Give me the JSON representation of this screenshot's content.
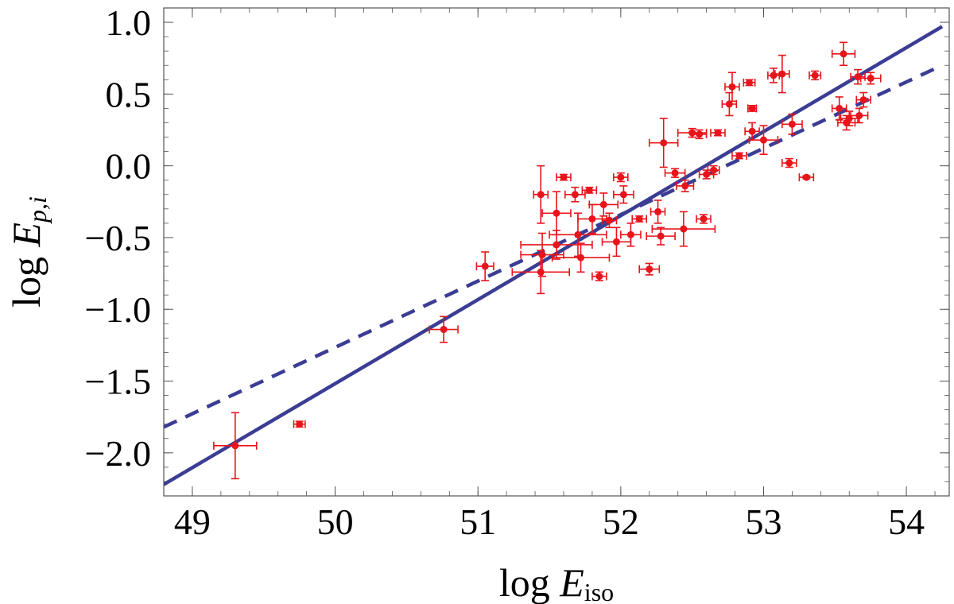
{
  "chart_data": {
    "type": "scatter",
    "title": "",
    "xlabel": {
      "base": "log ",
      "var": "E",
      "sub": "iso"
    },
    "ylabel": {
      "base": "log ",
      "var": "E",
      "sub": "p,i"
    },
    "xlim": [
      48.8,
      54.3
    ],
    "ylim": [
      -2.3,
      1.1
    ],
    "xticks": [
      49,
      50,
      51,
      52,
      53,
      54
    ],
    "xtick_labels": [
      "49",
      "50",
      "51",
      "52",
      "53",
      "54"
    ],
    "yticks": [
      1.0,
      0.5,
      0.0,
      -0.5,
      -1.0,
      -1.5,
      -2.0
    ],
    "ytick_labels": [
      "1.0",
      "0.5",
      "0.0",
      "−0.5",
      "−1.0",
      "−1.5",
      "−2.0"
    ],
    "grid": false,
    "colors": {
      "points": "#e8141b",
      "fit": "#3b3d94",
      "axes": "#555555"
    },
    "lines": [
      {
        "style": "solid",
        "x": [
          48.8,
          54.25
        ],
        "y": [
          -2.22,
          0.97
        ]
      },
      {
        "style": "dashed",
        "x": [
          48.8,
          54.25
        ],
        "y": [
          -1.82,
          0.7
        ]
      }
    ],
    "points": [
      {
        "x": 49.3,
        "y": -1.95,
        "xerr": 0.15,
        "yerr": 0.23
      },
      {
        "x": 49.75,
        "y": -1.8,
        "xerr": 0.04,
        "yerr": 0.02
      },
      {
        "x": 50.76,
        "y": -1.14,
        "xerr": 0.1,
        "yerr": 0.09
      },
      {
        "x": 51.05,
        "y": -0.7,
        "xerr": 0.06,
        "yerr": 0.1
      },
      {
        "x": 51.44,
        "y": -0.2,
        "xerr": 0.05,
        "yerr": 0.2
      },
      {
        "x": 51.45,
        "y": -0.62,
        "xerr": 0.15,
        "yerr": 0.15
      },
      {
        "x": 51.44,
        "y": -0.74,
        "xerr": 0.2,
        "yerr": 0.15
      },
      {
        "x": 51.55,
        "y": -0.33,
        "xerr": 0.1,
        "yerr": 0.15
      },
      {
        "x": 51.6,
        "y": -0.08,
        "xerr": 0.05,
        "yerr": 0.02
      },
      {
        "x": 51.68,
        "y": -0.2,
        "xerr": 0.07,
        "yerr": 0.05
      },
      {
        "x": 51.55,
        "y": -0.55,
        "xerr": 0.25,
        "yerr": 0.1
      },
      {
        "x": 51.7,
        "y": -0.48,
        "xerr": 0.2,
        "yerr": 0.15
      },
      {
        "x": 51.72,
        "y": -0.64,
        "xerr": 0.2,
        "yerr": 0.1
      },
      {
        "x": 51.78,
        "y": -0.17,
        "xerr": 0.05,
        "yerr": 0.02
      },
      {
        "x": 51.8,
        "y": -0.37,
        "xerr": 0.1,
        "yerr": 0.1
      },
      {
        "x": 51.85,
        "y": -0.77,
        "xerr": 0.05,
        "yerr": 0.03
      },
      {
        "x": 51.88,
        "y": -0.27,
        "xerr": 0.1,
        "yerr": 0.08
      },
      {
        "x": 51.92,
        "y": -0.38,
        "xerr": 0.05,
        "yerr": 0.05
      },
      {
        "x": 51.97,
        "y": -0.53,
        "xerr": 0.1,
        "yerr": 0.1
      },
      {
        "x": 52.0,
        "y": -0.08,
        "xerr": 0.05,
        "yerr": 0.03
      },
      {
        "x": 52.02,
        "y": -0.2,
        "xerr": 0.07,
        "yerr": 0.06
      },
      {
        "x": 52.07,
        "y": -0.48,
        "xerr": 0.07,
        "yerr": 0.08
      },
      {
        "x": 52.13,
        "y": -0.37,
        "xerr": 0.05,
        "yerr": 0.02
      },
      {
        "x": 52.2,
        "y": -0.72,
        "xerr": 0.07,
        "yerr": 0.04
      },
      {
        "x": 52.26,
        "y": -0.32,
        "xerr": 0.05,
        "yerr": 0.08
      },
      {
        "x": 52.28,
        "y": -0.49,
        "xerr": 0.1,
        "yerr": 0.06
      },
      {
        "x": 52.3,
        "y": 0.16,
        "xerr": 0.1,
        "yerr": 0.17
      },
      {
        "x": 52.38,
        "y": -0.05,
        "xerr": 0.07,
        "yerr": 0.03
      },
      {
        "x": 52.44,
        "y": -0.44,
        "xerr": 0.22,
        "yerr": 0.12
      },
      {
        "x": 52.45,
        "y": -0.14,
        "xerr": 0.06,
        "yerr": 0.04
      },
      {
        "x": 52.5,
        "y": 0.23,
        "xerr": 0.1,
        "yerr": 0.03
      },
      {
        "x": 52.55,
        "y": 0.22,
        "xerr": 0.05,
        "yerr": 0.03
      },
      {
        "x": 52.58,
        "y": -0.37,
        "xerr": 0.05,
        "yerr": 0.03
      },
      {
        "x": 52.6,
        "y": -0.06,
        "xerr": 0.05,
        "yerr": 0.03
      },
      {
        "x": 52.65,
        "y": -0.03,
        "xerr": 0.04,
        "yerr": 0.03
      },
      {
        "x": 52.68,
        "y": 0.23,
        "xerr": 0.05,
        "yerr": 0.02
      },
      {
        "x": 52.76,
        "y": 0.43,
        "xerr": 0.05,
        "yerr": 0.08
      },
      {
        "x": 52.78,
        "y": 0.55,
        "xerr": 0.05,
        "yerr": 0.1
      },
      {
        "x": 52.83,
        "y": 0.07,
        "xerr": 0.05,
        "yerr": 0.02
      },
      {
        "x": 52.9,
        "y": 0.58,
        "xerr": 0.04,
        "yerr": 0.02
      },
      {
        "x": 52.92,
        "y": 0.4,
        "xerr": 0.03,
        "yerr": 0.02
      },
      {
        "x": 52.92,
        "y": 0.24,
        "xerr": 0.05,
        "yerr": 0.06
      },
      {
        "x": 53.0,
        "y": 0.18,
        "xerr": 0.1,
        "yerr": 0.1
      },
      {
        "x": 53.07,
        "y": 0.63,
        "xerr": 0.04,
        "yerr": 0.05
      },
      {
        "x": 53.13,
        "y": 0.64,
        "xerr": 0.05,
        "yerr": 0.13
      },
      {
        "x": 53.18,
        "y": 0.02,
        "xerr": 0.05,
        "yerr": 0.03
      },
      {
        "x": 53.2,
        "y": 0.29,
        "xerr": 0.07,
        "yerr": 0.07
      },
      {
        "x": 53.3,
        "y": -0.08,
        "xerr": 0.05,
        "yerr": 0.01
      },
      {
        "x": 53.36,
        "y": 0.63,
        "xerr": 0.04,
        "yerr": 0.03
      },
      {
        "x": 53.53,
        "y": 0.4,
        "xerr": 0.05,
        "yerr": 0.08
      },
      {
        "x": 53.56,
        "y": 0.78,
        "xerr": 0.08,
        "yerr": 0.08
      },
      {
        "x": 53.58,
        "y": 0.3,
        "xerr": 0.06,
        "yerr": 0.05
      },
      {
        "x": 53.6,
        "y": 0.33,
        "xerr": 0.06,
        "yerr": 0.05
      },
      {
        "x": 53.66,
        "y": 0.62,
        "xerr": 0.05,
        "yerr": 0.05
      },
      {
        "x": 53.67,
        "y": 0.35,
        "xerr": 0.06,
        "yerr": 0.05
      },
      {
        "x": 53.7,
        "y": 0.46,
        "xerr": 0.05,
        "yerr": 0.05
      },
      {
        "x": 53.75,
        "y": 0.61,
        "xerr": 0.07,
        "yerr": 0.04
      }
    ]
  }
}
